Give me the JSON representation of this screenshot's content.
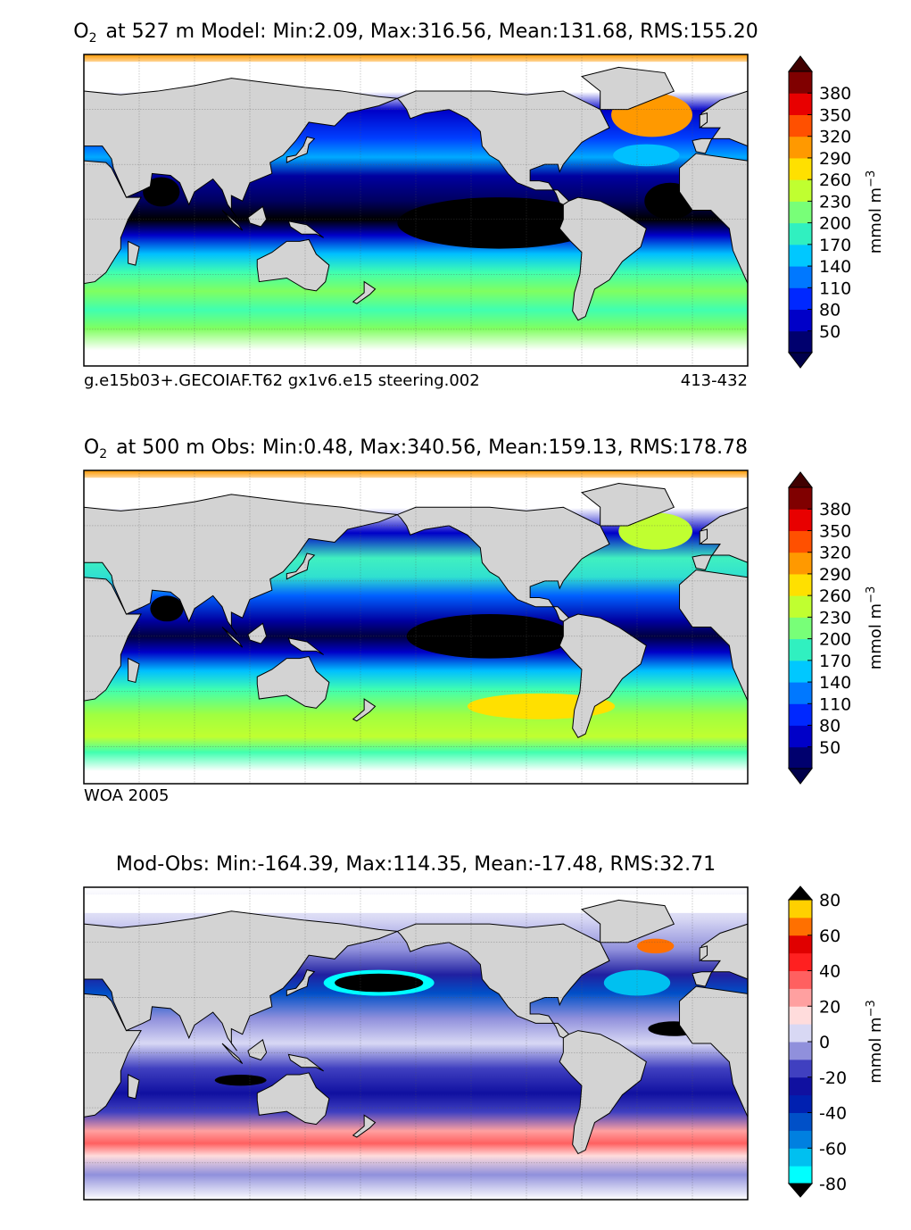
{
  "panels": [
    {
      "title": {
        "symbol": "O",
        "subscript": "2",
        "text": "at 527 m Model: Min:2.09, Max:316.56, Mean:131.68, RMS:155.20"
      },
      "notes": [
        "g.e15b03+.GECOIAF.T62 gx1v6.e15 steering.002",
        "413-432"
      ],
      "colorbar": {
        "label": "mmol m",
        "label_superscript": "−3",
        "clim": [
          20,
          410
        ],
        "ticks": [
          50,
          80,
          110,
          140,
          170,
          200,
          230,
          260,
          290,
          320,
          350,
          380
        ],
        "colors": [
          "#00006e",
          "#0000c8",
          "#0028ff",
          "#0078ff",
          "#00c8ff",
          "#30f0c0",
          "#78ff78",
          "#c0ff30",
          "#ffe000",
          "#ff9900",
          "#ff5000",
          "#e80000",
          "#800000"
        ],
        "extend_colors": [
          "#00004a",
          "#400000"
        ]
      }
    },
    {
      "title": {
        "symbol": "O",
        "subscript": "2",
        "text": "at 500 m Obs: Min:0.48, Max:340.56, Mean:159.13, RMS:178.78"
      },
      "notes": [
        "WOA 2005"
      ],
      "colorbar": {
        "label": "mmol m",
        "label_superscript": "−3",
        "clim": [
          20,
          410
        ],
        "ticks": [
          50,
          80,
          110,
          140,
          170,
          200,
          230,
          260,
          290,
          320,
          350,
          380
        ],
        "colors": [
          "#00006e",
          "#0000c8",
          "#0028ff",
          "#0078ff",
          "#00c8ff",
          "#30f0c0",
          "#78ff78",
          "#c0ff30",
          "#ffe000",
          "#ff9900",
          "#ff5000",
          "#e80000",
          "#800000"
        ],
        "extend_colors": [
          "#00004a",
          "#400000"
        ]
      }
    },
    {
      "title": {
        "text": "Mod-Obs: Min:-164.39, Max:114.35, Mean:-17.48, RMS:32.71"
      },
      "notes": [],
      "colorbar": {
        "label": "mmol m",
        "label_superscript": "−3",
        "clim": [
          -80,
          80
        ],
        "ticks": [
          -80,
          -60,
          -40,
          -20,
          0,
          20,
          40,
          60,
          80
        ],
        "colors": [
          "#00ffff",
          "#00c0f0",
          "#0080e0",
          "#0050c8",
          "#0020b0",
          "#1010a0",
          "#4040c0",
          "#9090dc",
          "#d8d8f4",
          "#ffdcdc",
          "#ffa0a0",
          "#ff6060",
          "#ff2020",
          "#e00000",
          "#ff7000",
          "#ffd000"
        ],
        "extend_colors": [
          "#000000",
          "#000000"
        ]
      }
    }
  ]
}
